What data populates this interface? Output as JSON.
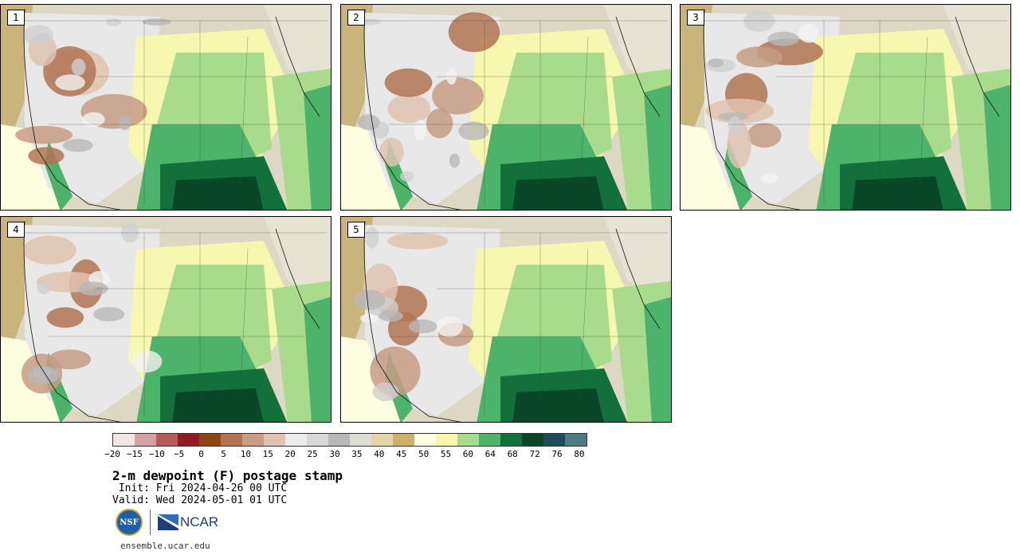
{
  "panels": [
    {
      "label": "1"
    },
    {
      "label": "2"
    },
    {
      "label": "3"
    },
    {
      "label": "4"
    },
    {
      "label": "5"
    }
  ],
  "colorbar": {
    "colors": [
      "#f1e6e6",
      "#d3a3a3",
      "#b35c5c",
      "#8e1c22",
      "#8c4615",
      "#b07452",
      "#c69c84",
      "#dfc3b2",
      "#ececec",
      "#d8d8d8",
      "#b8b8b8",
      "#dcdcd2",
      "#e2d5a8",
      "#cfb16f",
      "#ffffe3",
      "#f6f8b0",
      "#a8dc8c",
      "#4cb36a",
      "#13703a",
      "#0a4628",
      "#1d4c5a",
      "#4f7b82"
    ],
    "tick_labels": [
      "−20",
      "−15",
      "−10",
      "−5",
      "0",
      "5",
      "10",
      "15",
      "20",
      "25",
      "30",
      "35",
      "40",
      "45",
      "50",
      "55",
      "60",
      "64",
      "68",
      "72",
      "76",
      "80"
    ]
  },
  "title": "2-m dewpoint (F) postage stamp",
  "init_line": " Init: Fri 2024-04-26 00 UTC",
  "valid_line": "Valid: Wed 2024-05-01 01 UTC",
  "logos": {
    "nsf_text": "NSF",
    "ncar_text": "NCAR"
  },
  "footer": "ensemble.ucar.edu"
}
